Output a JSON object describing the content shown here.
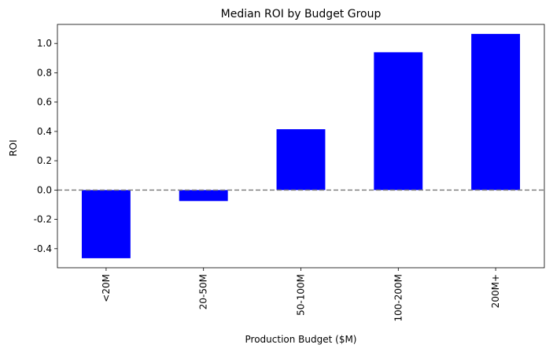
{
  "chart_data": {
    "type": "bar",
    "title": "Median ROI by Budget Group",
    "xlabel": "Production Budget ($M)",
    "ylabel": "ROI",
    "categories": [
      "<20M",
      "20-50M",
      "50-100M",
      "100-200M",
      "200M+"
    ],
    "values": [
      -0.465,
      -0.075,
      0.415,
      0.94,
      1.065
    ],
    "ylim": [
      -0.53,
      1.13
    ],
    "yticks": [
      "-0.4",
      "-0.2",
      "0.0",
      "0.2",
      "0.4",
      "0.6",
      "0.8",
      "1.0"
    ],
    "reference_line": 0.0,
    "bar_color": "#0000ff",
    "reference_line_color": "#808080",
    "grid": false,
    "legend": "none"
  }
}
